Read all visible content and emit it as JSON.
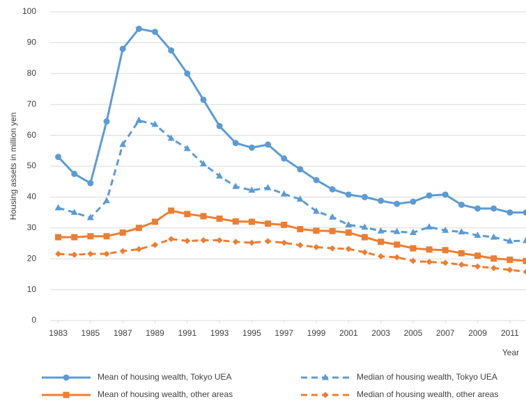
{
  "chart_data": {
    "type": "line",
    "y_label": "Housing assets in million yen",
    "x_label": "Year",
    "x": [
      1983,
      1984,
      1985,
      1986,
      1987,
      1988,
      1989,
      1990,
      1991,
      1992,
      1993,
      1994,
      1995,
      1996,
      1997,
      1998,
      1999,
      2000,
      2001,
      2002,
      2003,
      2004,
      2005,
      2006,
      2007,
      2008,
      2009,
      2010,
      2011,
      2012
    ],
    "xlim": [
      1982.5,
      2012
    ],
    "xticks": [
      1983,
      1985,
      1987,
      1989,
      1991,
      1993,
      1995,
      1997,
      1999,
      2001,
      2003,
      2005,
      2007,
      2009,
      2011
    ],
    "ylim": [
      0,
      100
    ],
    "yticks": [
      0,
      10,
      20,
      30,
      40,
      50,
      60,
      70,
      80,
      90,
      100
    ],
    "grid": true,
    "series": [
      {
        "name": "Mean of housing wealth, Tokyo UEA",
        "color": "#5b9bd5",
        "dash": false,
        "marker": "circle",
        "values": [
          53,
          47.5,
          44.5,
          64.5,
          88,
          94.5,
          93.5,
          87.5,
          80,
          71.5,
          63,
          57.5,
          56,
          57,
          52.5,
          49,
          45.5,
          42.5,
          40.8,
          40,
          38.8,
          37.8,
          38.5,
          40.5,
          40.8,
          37.5,
          36.3,
          36.3,
          35,
          35
        ]
      },
      {
        "name": "Median of housing wealth, Tokyo UEA",
        "color": "#5b9bd5",
        "dash": true,
        "marker": "triangle",
        "values": [
          36.5,
          35,
          33.3,
          38.8,
          57,
          64.8,
          63.5,
          59,
          55.7,
          50.7,
          46.8,
          43.4,
          42.2,
          43,
          41,
          39.3,
          35.4,
          33.5,
          31,
          30.2,
          29,
          28.8,
          28.5,
          30.3,
          29.2,
          28.7,
          27.6,
          27,
          25.7,
          25.9
        ]
      },
      {
        "name": "Mean of housing wealth, other areas",
        "color": "#ed7d31",
        "dash": false,
        "marker": "square",
        "values": [
          27,
          27,
          27.3,
          27.3,
          28.5,
          30,
          32,
          35.6,
          34.5,
          33.8,
          33,
          32.1,
          32,
          31.4,
          31,
          29.6,
          29.1,
          29,
          28.5,
          27,
          25.5,
          24.6,
          23.4,
          23,
          22.8,
          21.8,
          21,
          20.1,
          19.7,
          19.3
        ]
      },
      {
        "name": "Median of housing wealth, other areas",
        "color": "#ed7d31",
        "dash": true,
        "marker": "diamond",
        "values": [
          21.6,
          21.3,
          21.6,
          21.6,
          22.5,
          23.1,
          24.5,
          26.4,
          25.8,
          26,
          26,
          25.5,
          25.2,
          25.7,
          25.2,
          24.4,
          23.8,
          23.4,
          23.2,
          22.1,
          20.8,
          20.5,
          19.3,
          19,
          18.7,
          18.1,
          17.5,
          17,
          16.4,
          15.8
        ]
      }
    ]
  }
}
